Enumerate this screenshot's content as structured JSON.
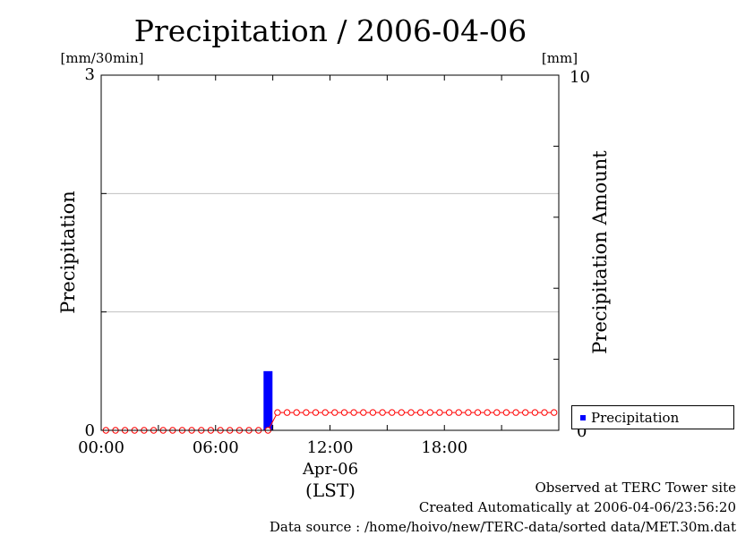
{
  "chart_data": {
    "type": "bar",
    "title": "Precipitation / 2006-04-06",
    "ylabel": "Precipitation",
    "ylabel_right": "Precipitation Amount",
    "yunit": "[mm/30min]",
    "yunit_right": "[mm]",
    "ylim": [
      0,
      3
    ],
    "ylim_right": [
      0,
      10
    ],
    "yticks": [
      "0",
      "3"
    ],
    "yticks_right": [
      "0",
      "10"
    ],
    "xlim": [
      0,
      48
    ],
    "xticks": [
      {
        "x": 0,
        "label": "00:00"
      },
      {
        "x": 12,
        "label": "06:00"
      },
      {
        "x": 24,
        "label": "12:00"
      },
      {
        "x": 36,
        "label": "18:00"
      }
    ],
    "xdate": "Apr-06",
    "xtimezone": "(LST)",
    "grid": true,
    "legend_position": "bottom-right",
    "series": [
      {
        "name": "Precipitation",
        "kind": "bar",
        "axis": "left",
        "color": "#0000ff",
        "x": [
          17
        ],
        "values": [
          0.5
        ]
      },
      {
        "kind": "line-markers",
        "axis": "right",
        "color": "#ff0000",
        "x": [
          0,
          1,
          2,
          3,
          4,
          5,
          6,
          7,
          8,
          9,
          10,
          11,
          12,
          13,
          14,
          15,
          16,
          17,
          18,
          19,
          20,
          21,
          22,
          23,
          24,
          25,
          26,
          27,
          28,
          29,
          30,
          31,
          32,
          33,
          34,
          35,
          36,
          37,
          38,
          39,
          40,
          41,
          42,
          43,
          44,
          45,
          46,
          47
        ],
        "values": [
          0,
          0,
          0,
          0,
          0,
          0,
          0,
          0,
          0,
          0,
          0,
          0,
          0,
          0,
          0,
          0,
          0,
          0,
          0.5,
          0.5,
          0.5,
          0.5,
          0.5,
          0.5,
          0.5,
          0.5,
          0.5,
          0.5,
          0.5,
          0.5,
          0.5,
          0.5,
          0.5,
          0.5,
          0.5,
          0.5,
          0.5,
          0.5,
          0.5,
          0.5,
          0.5,
          0.5,
          0.5,
          0.5,
          0.5,
          0.5,
          0.5,
          0.5
        ]
      }
    ]
  },
  "footer": {
    "line1": "Observed at TERC Tower site",
    "line2": "Created Automatically at 2006-04-06/23:56:20",
    "line3": "Data source : /home/hoivo/new/TERC-data/sorted  data/MET.30m.dat"
  }
}
